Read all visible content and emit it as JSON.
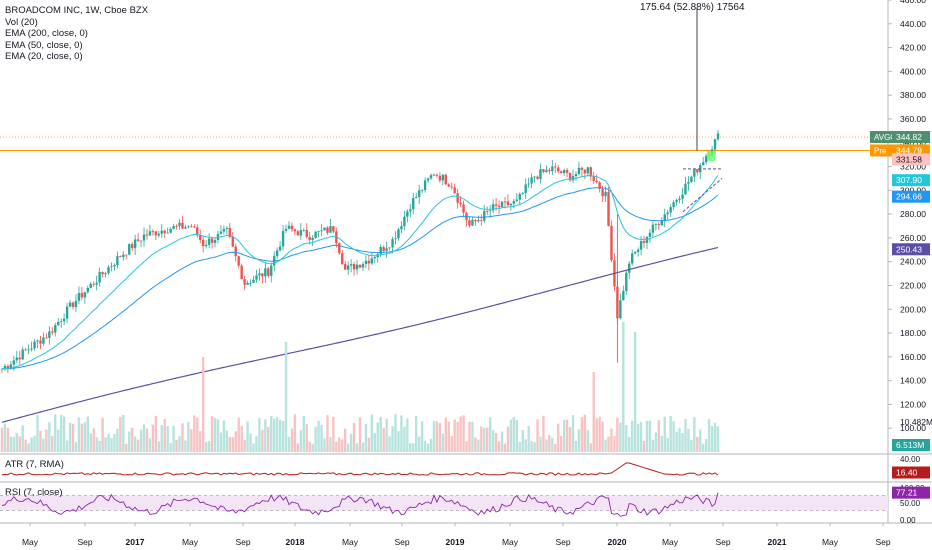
{
  "legend": {
    "title": "BROADCOM INC, 1W, Cboe BZX",
    "vol": "Vol (20)",
    "ema200": "EMA (200, close, 0)",
    "ema50": "EMA (50, close, 0)",
    "ema20": "EMA (20, close, 0)"
  },
  "measure": {
    "label": "175.64 (52.88%) 17564"
  },
  "panes": {
    "atr": "ATR (7, RMA)",
    "rsi": "RSI (7, close)"
  },
  "colors": {
    "up": "#26a69a",
    "down": "#ef5350",
    "ema20": "#26c6da",
    "ema50": "#2196f3",
    "ema200": "#5b4ea6",
    "atr": "#b71c1c",
    "rsi": "#8e24aa",
    "orange": "#ff9800"
  },
  "chart_data": {
    "type": "candlestick",
    "x_ticks": [
      "May",
      "Sep",
      "2017",
      "May",
      "Sep",
      "2018",
      "May",
      "Sep",
      "2019",
      "May",
      "Sep",
      "2020",
      "May",
      "Sep",
      "2021",
      "May",
      "Sep"
    ],
    "y_ticks": [
      100,
      120,
      140,
      160,
      180,
      200,
      220,
      240,
      260,
      280,
      300,
      320,
      340,
      360,
      380,
      400,
      420,
      440,
      460
    ],
    "price_anchors": [
      [
        0,
        150
      ],
      [
        8,
        165
      ],
      [
        16,
        180
      ],
      [
        24,
        205
      ],
      [
        32,
        225
      ],
      [
        40,
        245
      ],
      [
        48,
        262
      ],
      [
        56,
        268
      ],
      [
        64,
        270
      ],
      [
        68,
        255
      ],
      [
        76,
        265
      ],
      [
        82,
        222
      ],
      [
        90,
        232
      ],
      [
        96,
        268
      ],
      [
        104,
        262
      ],
      [
        112,
        268
      ],
      [
        116,
        233
      ],
      [
        124,
        242
      ],
      [
        132,
        258
      ],
      [
        138,
        288
      ],
      [
        146,
        315
      ],
      [
        152,
        305
      ],
      [
        158,
        270
      ],
      [
        166,
        285
      ],
      [
        174,
        290
      ],
      [
        180,
        312
      ],
      [
        186,
        318
      ],
      [
        192,
        312
      ],
      [
        198,
        318
      ],
      [
        204,
        295
      ],
      [
        208,
        195
      ],
      [
        212,
        240
      ],
      [
        218,
        262
      ],
      [
        224,
        280
      ],
      [
        230,
        300
      ],
      [
        236,
        322
      ],
      [
        242,
        345
      ]
    ],
    "volume_spikes": [
      [
        96,
        110
      ],
      [
        68,
        95
      ],
      [
        200,
        80
      ],
      [
        210,
        130
      ],
      [
        214,
        120
      ]
    ],
    "price_labels": [
      {
        "tag": "AVGO",
        "value": "344.82",
        "price": 344.82,
        "color": "#4e8f70"
      },
      {
        "tag": "Pre",
        "value": "344.79",
        "price": 333.5,
        "color": "#ff9800"
      },
      {
        "tag": "",
        "value": "331.58",
        "price": 326,
        "color": "#ffc2c2",
        "text": "#131722"
      },
      {
        "tag": "",
        "value": "307.90",
        "price": 308.5,
        "color": "#26c6da"
      },
      {
        "tag": "",
        "value": "294.66",
        "price": 294.66,
        "color": "#2196f3"
      },
      {
        "tag": "",
        "value": "250.43",
        "price": 250.43,
        "color": "#5b4ea6"
      }
    ],
    "volume_labels": [
      {
        "value": "10.482M",
        "kind": "text"
      },
      {
        "value": "6.513M",
        "color": "#26a69a"
      }
    ],
    "atr": {
      "ticks": [
        "40.00",
        "20.00"
      ],
      "label": "16.40",
      "color": "#b71c1c"
    },
    "rsi": {
      "ticks": [
        "100.00",
        "50.00",
        "0.00"
      ],
      "label": "77.21",
      "color": "#8e24aa",
      "upper": 70,
      "lower": 30
    }
  }
}
